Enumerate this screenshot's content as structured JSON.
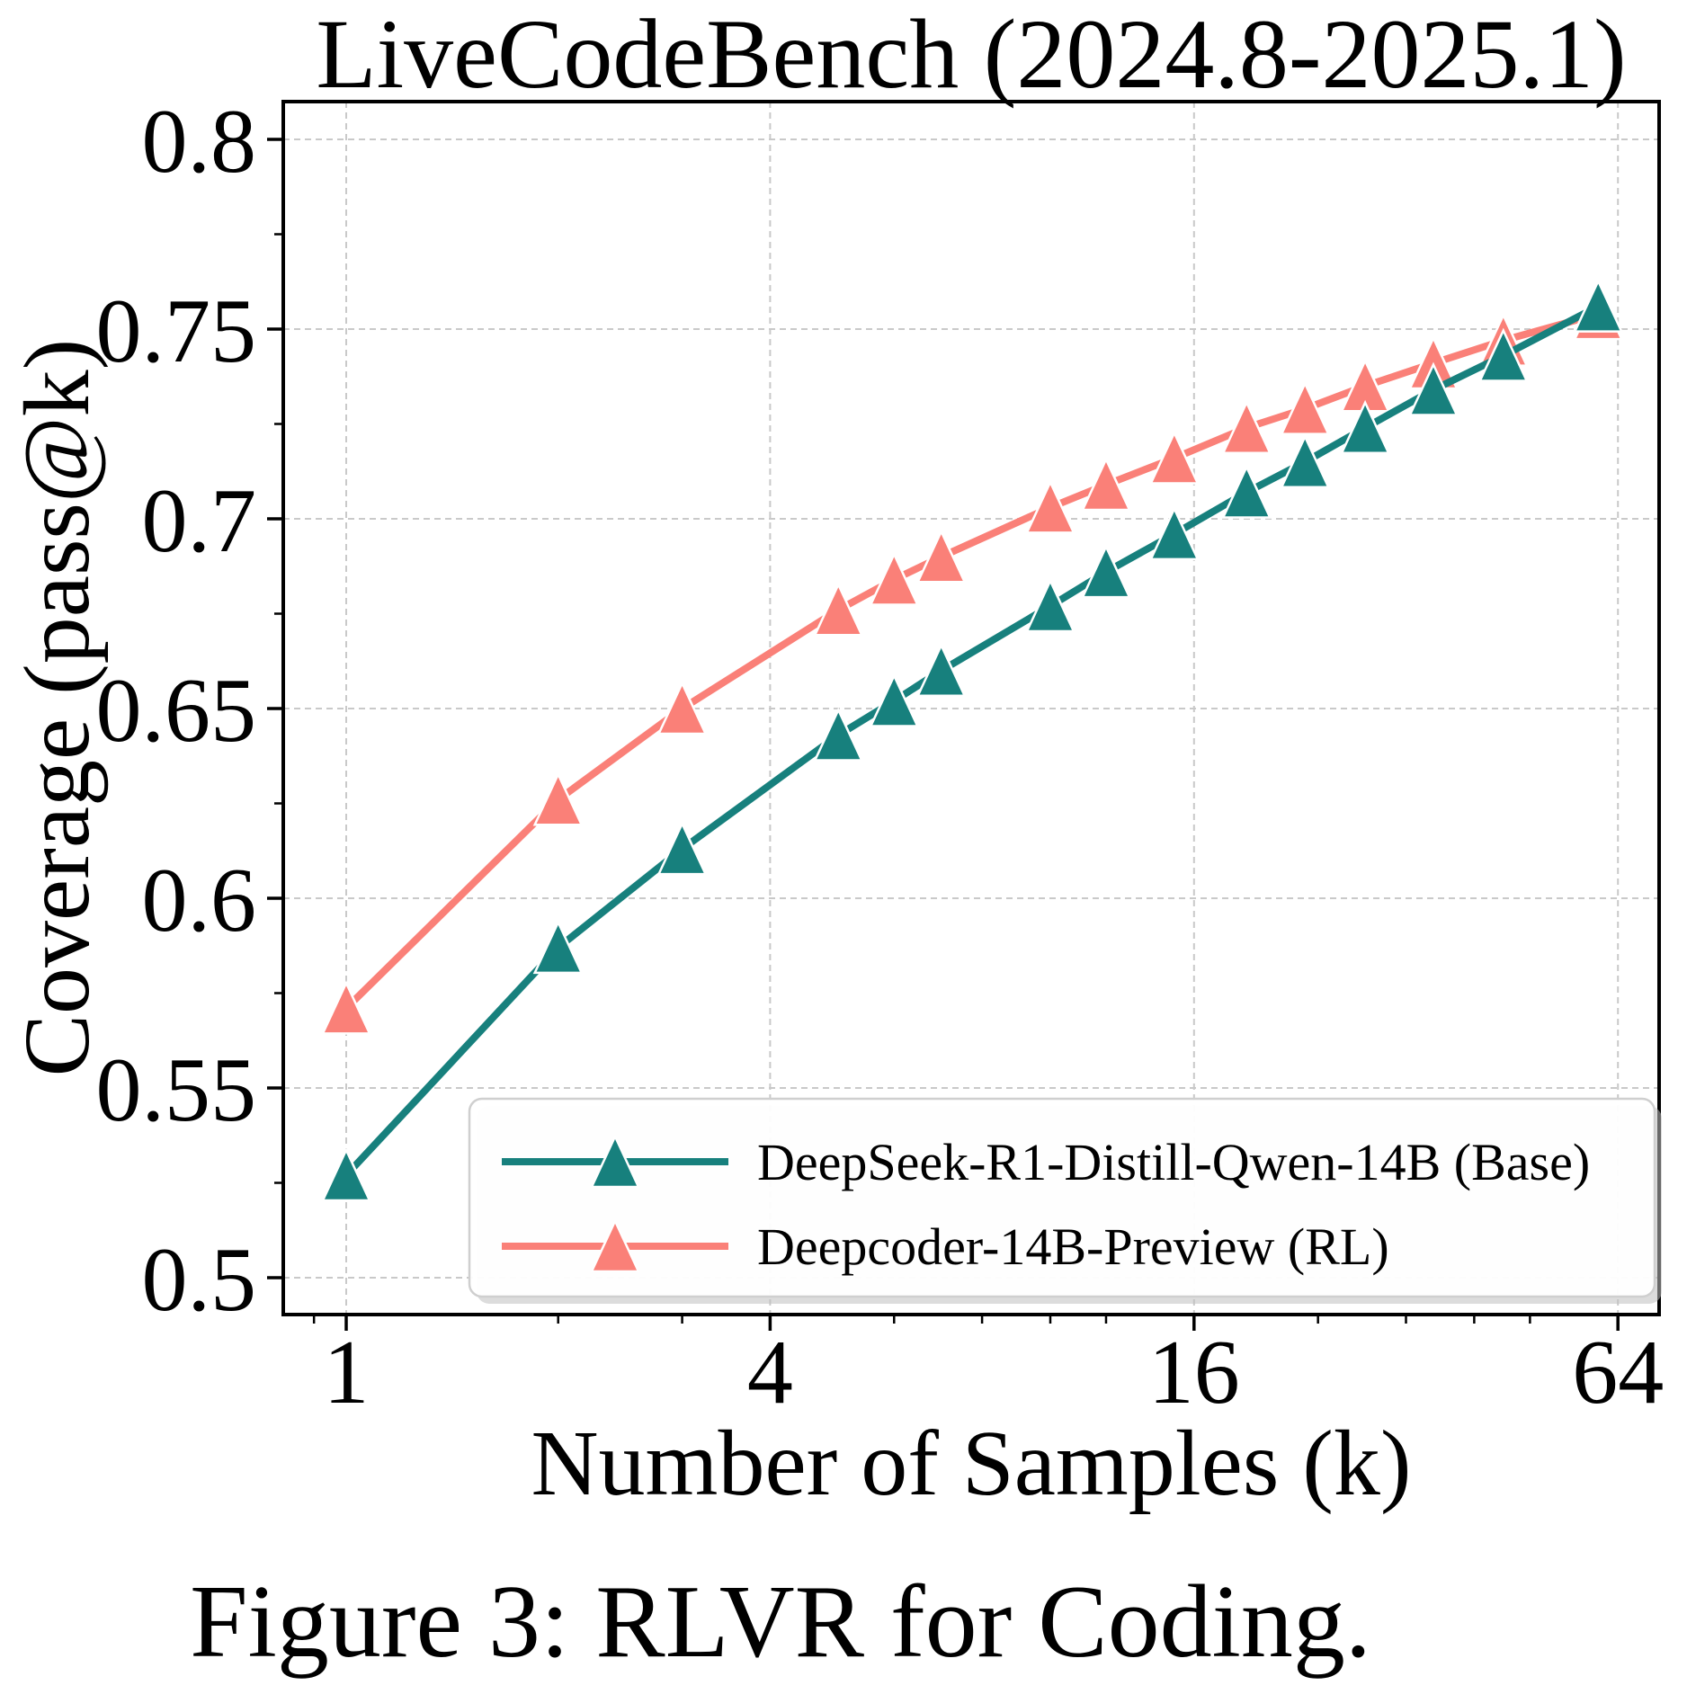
{
  "chart_data": {
    "type": "line",
    "title": "LiveCodeBench (2024.8-2025.1)",
    "xlabel": "Number of Samples (k)",
    "ylabel": "Coverage (pass@k)",
    "caption": "Figure 3: RLVR for Coding.",
    "x_scale": "log",
    "xlim": [
      0.814,
      73.2
    ],
    "ylim": [
      0.49,
      0.81
    ],
    "x_ticks": {
      "values": [
        1,
        4,
        16,
        64
      ],
      "labels": [
        "1",
        "4",
        "16",
        "64"
      ],
      "minor": [
        0.9,
        2,
        3,
        6,
        8,
        10,
        12,
        24,
        32,
        40,
        48
      ]
    },
    "y_ticks": {
      "values": [
        0.5,
        0.55,
        0.6,
        0.65,
        0.7,
        0.75,
        0.8
      ],
      "labels": [
        "0.5",
        "0.55",
        "0.6",
        "0.65",
        "0.7",
        "0.75",
        "0.8"
      ],
      "minor": [
        0.525,
        0.575,
        0.625,
        0.675,
        0.725,
        0.775
      ]
    },
    "grid": {
      "show": true,
      "style": "dashed",
      "color": "#C9C9C9"
    },
    "x": [
      1,
      2,
      3,
      5,
      6,
      7,
      10,
      12,
      15,
      19,
      23,
      28,
      35,
      44,
      60
    ],
    "series": [
      {
        "name": "DeepSeek-R1-Distill-Qwen-14B (Base)",
        "color": "#17807D",
        "marker": "triangle-up",
        "values": [
          0.527,
          0.587,
          0.613,
          0.643,
          0.652,
          0.66,
          0.677,
          0.686,
          0.696,
          0.707,
          0.715,
          0.724,
          0.734,
          0.743,
          0.756
        ]
      },
      {
        "name": "Deepcoder-14B-Preview (RL)",
        "color": "#FA8078",
        "marker": "triangle-up",
        "values": [
          0.571,
          0.626,
          0.65,
          0.676,
          0.684,
          0.69,
          0.703,
          0.709,
          0.716,
          0.724,
          0.729,
          0.735,
          0.741,
          0.747,
          0.754
        ]
      }
    ],
    "legend": {
      "position": "lower right",
      "entries": [
        "DeepSeek-R1-Distill-Qwen-14B (Base)",
        "Deepcoder-14B-Preview (RL)"
      ]
    }
  }
}
